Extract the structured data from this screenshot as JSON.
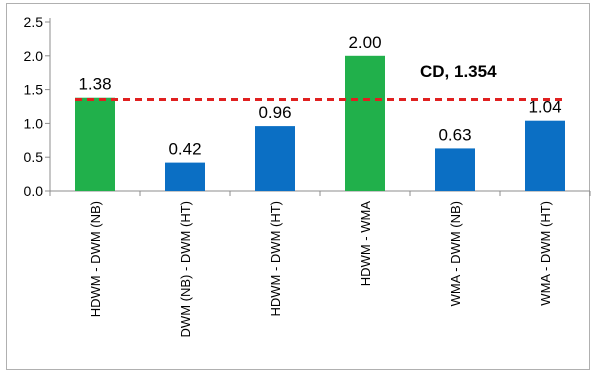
{
  "chart_data": {
    "type": "bar",
    "categories": [
      "HDWM - DWM (NB)",
      "DWM (NB) - DWM (HT)",
      "HDWM - DWM (HT)",
      "HDWM - WMA",
      "WMA - DWM (NB)",
      "WMA - DWM (HT)"
    ],
    "values": [
      1.38,
      0.42,
      0.96,
      2.0,
      0.63,
      1.04
    ],
    "data_labels": [
      "1.38",
      "0.42",
      "0.96",
      "2.00",
      "0.63",
      "1.04"
    ],
    "bar_colors": [
      "#21b04b",
      "#0b6fc4",
      "#0b6fc4",
      "#21b04b",
      "#0b6fc4",
      "#0b6fc4"
    ],
    "ylim": [
      0,
      2.5
    ],
    "yticks": [
      0.0,
      0.5,
      1.0,
      1.5,
      2.0,
      2.5
    ],
    "ytick_labels": [
      "0.0",
      "0.5",
      "1.0",
      "1.5",
      "2.0",
      "2.5"
    ],
    "title": "",
    "xlabel": "",
    "ylabel": "",
    "grid": false,
    "reference_line": {
      "label": "CD, 1.354",
      "value": 1.354,
      "color": "#e02020",
      "style": "dashed"
    }
  }
}
